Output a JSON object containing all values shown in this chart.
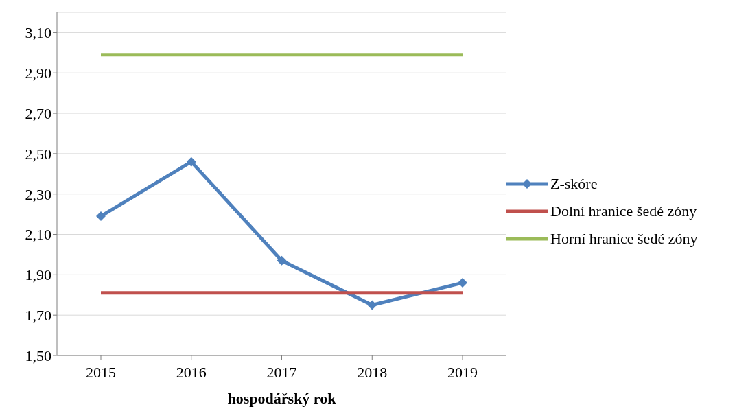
{
  "chart_data": {
    "type": "line",
    "xlabel": "hospodářský rok",
    "categories": [
      "2015",
      "2016",
      "2017",
      "2018",
      "2019"
    ],
    "series": [
      {
        "name": "Z-skóre",
        "color": "#4f81bd",
        "marker": "diamond",
        "values": [
          2.19,
          2.46,
          1.97,
          1.75,
          1.86
        ]
      },
      {
        "name": "Dolní hranice šedé zóny",
        "color": "#c0504d",
        "marker": "none",
        "values": [
          1.81,
          1.81,
          1.81,
          1.81,
          1.81
        ]
      },
      {
        "name": "Horní hranice šedé zóny",
        "color": "#9bbb59",
        "marker": "none",
        "values": [
          2.99,
          2.99,
          2.99,
          2.99,
          2.99
        ]
      }
    ],
    "ylim": [
      1.5,
      3.2
    ],
    "yticks": [
      {
        "value": 1.5,
        "label": "1,50"
      },
      {
        "value": 1.7,
        "label": "1,70"
      },
      {
        "value": 1.9,
        "label": "1,90"
      },
      {
        "value": 2.1,
        "label": "2,10"
      },
      {
        "value": 2.3,
        "label": "2,30"
      },
      {
        "value": 2.5,
        "label": "2,50"
      },
      {
        "value": 2.7,
        "label": "2,70"
      },
      {
        "value": 2.9,
        "label": "2,90"
      },
      {
        "value": 3.1,
        "label": "3,10"
      }
    ],
    "grid": "y",
    "legend": "right"
  }
}
